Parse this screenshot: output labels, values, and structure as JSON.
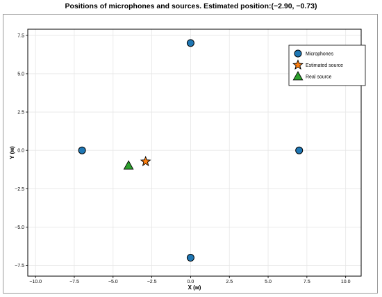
{
  "chart_data": {
    "type": "scatter",
    "title": "Positions of microphones and sources. Estimated position:(−2.90, −0.73)",
    "xlabel": "X (м)",
    "ylabel": "Y (м)",
    "xlim": [
      -10.5,
      11.0
    ],
    "ylim": [
      -8.2,
      7.9
    ],
    "x_ticks": [
      -10.0,
      -7.5,
      -5.0,
      -2.5,
      0.0,
      2.5,
      5.0,
      7.5,
      10.0
    ],
    "y_ticks": [
      -7.5,
      -5.0,
      -2.5,
      0.0,
      2.5,
      5.0,
      7.5
    ],
    "x_tick_labels": [
      "−10.0",
      "−7.5",
      "−5.0",
      "−2.5",
      "0.0",
      "2.5",
      "5.0",
      "7.5",
      "10.0"
    ],
    "y_tick_labels": [
      "−7.5",
      "−5.0",
      "−2.5",
      "0.0",
      "2.5",
      "5.0",
      "7.5"
    ],
    "grid": true,
    "legend_position": "top-right",
    "series": [
      {
        "name": "Microphones",
        "marker": "circle",
        "color": "#1f77b4",
        "points": [
          {
            "x": 0.0,
            "y": 7.0
          },
          {
            "x": -7.0,
            "y": 0.0
          },
          {
            "x": 7.0,
            "y": 0.0
          },
          {
            "x": 0.0,
            "y": -7.0
          }
        ]
      },
      {
        "name": "Estimated source",
        "marker": "star",
        "color": "#ff7f0e",
        "points": [
          {
            "x": -2.9,
            "y": -0.73
          }
        ]
      },
      {
        "name": "Real source",
        "marker": "triangle",
        "color": "#2ca02c",
        "points": [
          {
            "x": -4.0,
            "y": -1.0
          }
        ]
      }
    ]
  }
}
